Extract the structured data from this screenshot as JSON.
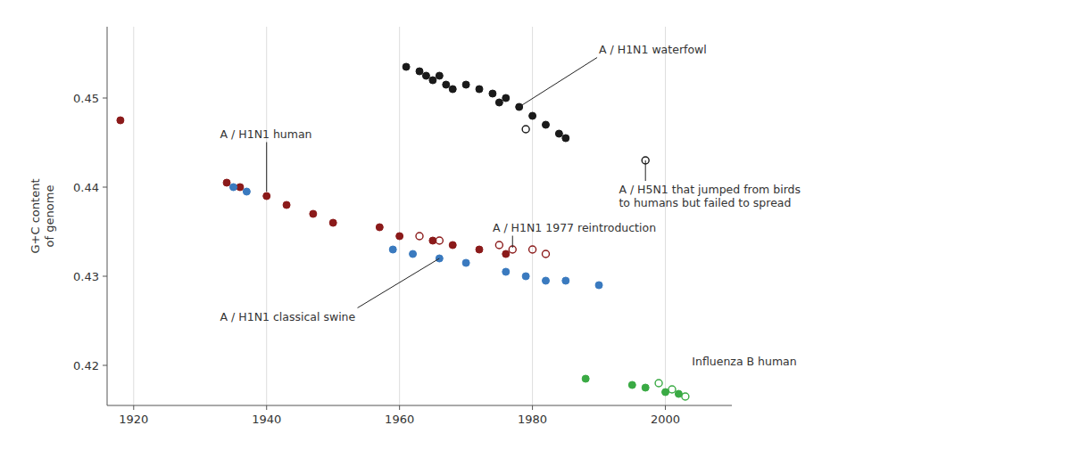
{
  "chart_data": {
    "type": "scatter",
    "ylabel": "G+C content\nof genome",
    "xlim": [
      1916,
      2010
    ],
    "ylim": [
      0.4155,
      0.458
    ],
    "xticks": [
      1920,
      1940,
      1960,
      1980,
      2000
    ],
    "yticks": [
      0.42,
      0.43,
      0.44,
      0.45
    ],
    "grid": "x",
    "series": [
      {
        "color": "#8b1a1a",
        "marker": "circle",
        "x": [
          1918,
          1934,
          1936,
          1940,
          1943,
          1947,
          1950,
          1957,
          1960,
          1965,
          1968,
          1972,
          1976
        ],
        "values": [
          0.4475,
          0.4405,
          0.44,
          0.439,
          0.438,
          0.437,
          0.436,
          0.4355,
          0.4345,
          0.434,
          0.4335,
          0.433,
          0.4325
        ]
      },
      {
        "color": "#3a7abf",
        "marker": "circle",
        "x": [
          1935,
          1937,
          1959,
          1962,
          1966,
          1970,
          1976,
          1979,
          1982,
          1985,
          1990
        ],
        "values": [
          0.44,
          0.4395,
          0.433,
          0.4325,
          0.432,
          0.4315,
          0.4305,
          0.43,
          0.4295,
          0.4295,
          0.429
        ]
      },
      {
        "color": "#1a1a1a",
        "marker": "circle",
        "x": [
          1961,
          1963,
          1964,
          1965,
          1966,
          1967,
          1968,
          1970,
          1972,
          1974,
          1975,
          1976,
          1978,
          1980,
          1982,
          1984,
          1985
        ],
        "values": [
          0.4535,
          0.453,
          0.4525,
          0.452,
          0.4525,
          0.4515,
          0.451,
          0.4515,
          0.451,
          0.4505,
          0.4495,
          0.45,
          0.449,
          0.448,
          0.447,
          0.446,
          0.4455
        ]
      },
      {
        "color": "#1a1a1a",
        "marker": "circle-open",
        "x": [
          1979,
          1997
        ],
        "values": [
          0.4465,
          0.443
        ]
      },
      {
        "color": "#8b1a1a",
        "marker": "circle-open",
        "x": [
          1963,
          1966,
          1975,
          1977,
          1980,
          1982
        ],
        "values": [
          0.4345,
          0.434,
          0.4335,
          0.433,
          0.433,
          0.4325
        ]
      },
      {
        "color": "#3aaa44",
        "marker": "circle",
        "x": [
          1988,
          1995,
          1997,
          2000,
          2002
        ],
        "values": [
          0.4185,
          0.4178,
          0.4175,
          0.417,
          0.4168
        ]
      },
      {
        "color": "#3aaa44",
        "marker": "circle-open",
        "x": [
          1999,
          2001,
          2003
        ],
        "values": [
          0.418,
          0.4173,
          0.4165
        ]
      }
    ],
    "annotations": [
      {
        "text": "A / H1N1 human",
        "xy": [
          1940,
          0.4395
        ],
        "xytext": [
          1933,
          0.446
        ]
      },
      {
        "text": "A / H1N1 classical swine",
        "xy": [
          1966,
          0.432
        ],
        "xytext": [
          1933,
          0.4255
        ]
      },
      {
        "text": "A / H1N1 waterfowl",
        "xy": [
          1978,
          0.449
        ],
        "xytext": [
          1990,
          0.4555
        ]
      },
      {
        "text": "A / H5N1 that jumped from birds\nto humans but failed to spread",
        "xy": [
          1997,
          0.443
        ],
        "xytext": [
          1993,
          0.439
        ]
      },
      {
        "text": "A / H1N1 1977 reintroduction",
        "xy": [
          1977,
          0.4332
        ],
        "xytext": [
          1974,
          0.4355
        ]
      },
      {
        "text": "Influenza B human",
        "xytext": [
          2004,
          0.4205
        ]
      }
    ]
  }
}
